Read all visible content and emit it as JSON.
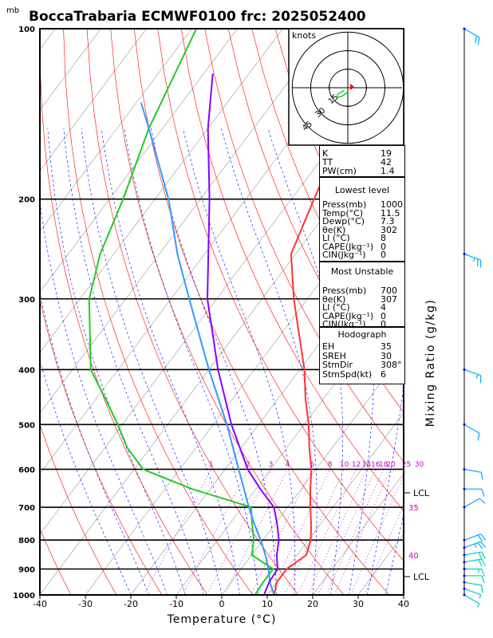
{
  "title": "BoccaTrabaria ECMWF0100 frc: 2025052400",
  "pressure_unit": "mb",
  "xlabel": "Temperature (°C)",
  "right_axis_label": "Mixing Ratio (g/kg)",
  "hodograph": {
    "unit_label": "knots",
    "ring_labels": [
      "15",
      "30",
      "45"
    ],
    "trace_color": "#22cc22",
    "storm_marker_color": "#ff0000"
  },
  "lcl_labels": [
    "LCL",
    "LCL"
  ],
  "mixing_ratio_labels": [
    "1",
    "2",
    "3",
    "4",
    "6",
    "8",
    "10",
    "12",
    "14",
    "16",
    "18",
    "20",
    "25",
    "30"
  ],
  "wetbulb_labels": [
    "35",
    "40"
  ],
  "colors": {
    "dry_adiabat": "#ff0000",
    "moist_adiabat": "#0000ff",
    "mixing_ratio": "#cc00cc",
    "environment_temperature": "#ff3333",
    "dewpoint": "#22cc22",
    "parcel": "#3399ff",
    "wetbulb": "#8800ff",
    "wind_barbs": "#00aaff"
  },
  "indices": {
    "basic": [
      {
        "label": "K",
        "value": "19"
      },
      {
        "label": "TT",
        "value": "42"
      },
      {
        "label": "PW(cm)",
        "value": "1.4"
      }
    ],
    "lowest_level": {
      "header": "Lowest level",
      "rows": [
        {
          "label": "Press(mb)",
          "value": "1000"
        },
        {
          "label": "Temp(°C)",
          "value": "11.5"
        },
        {
          "label": "Dewp(°C)",
          "value": "7.3"
        },
        {
          "label": "θe(K)",
          "value": "302"
        },
        {
          "label": "LI (°C)",
          "value": "8"
        },
        {
          "label": "CAPE(Jkg⁻¹)",
          "value": "0"
        },
        {
          "label": "CIN(Jkg⁻¹)",
          "value": "0"
        }
      ]
    },
    "most_unstable": {
      "header": "Most Unstable",
      "rows": [
        {
          "label": "Press(mb)",
          "value": "700"
        },
        {
          "label": "θe(K)",
          "value": "307"
        },
        {
          "label": "LI (°C)",
          "value": "4"
        },
        {
          "label": "CAPE(Jkg⁻¹)",
          "value": "0"
        },
        {
          "label": "CIN(Jkg⁻¹)",
          "value": "0"
        }
      ]
    },
    "hodograph": {
      "header": "Hodograph",
      "rows": [
        {
          "label": "EH",
          "value": "35"
        },
        {
          "label": "SREH",
          "value": "30"
        },
        {
          "label": "StmDir",
          "value": "308°"
        },
        {
          "label": "StmSpd(kt)",
          "value": "6"
        }
      ]
    }
  },
  "chart_data": {
    "type": "line",
    "title": "BoccaTrabaria ECMWF0100 frc: 2025052400",
    "xlabel": "Temperature (°C)",
    "ylabel": "mb",
    "xlim": [
      -40,
      40
    ],
    "ylim": [
      1000,
      100
    ],
    "y_scale": "log",
    "x_ticks": [
      -40,
      -30,
      -20,
      -10,
      0,
      10,
      20,
      30,
      40
    ],
    "y_ticks": [
      100,
      200,
      300,
      400,
      500,
      600,
      700,
      800,
      900,
      1000
    ],
    "grid": true,
    "series": [
      {
        "name": "Temperature",
        "points": [
          {
            "p": 1000,
            "t": 11.5
          },
          {
            "p": 950,
            "t": 10.0
          },
          {
            "p": 900,
            "t": 10.0
          },
          {
            "p": 850,
            "t": 12.0
          },
          {
            "p": 800,
            "t": 10.5
          },
          {
            "p": 750,
            "t": 8.0
          },
          {
            "p": 700,
            "t": 5.0
          },
          {
            "p": 650,
            "t": 2.0
          },
          {
            "p": 600,
            "t": -1.0
          },
          {
            "p": 550,
            "t": -5.0
          },
          {
            "p": 500,
            "t": -9.0
          },
          {
            "p": 450,
            "t": -14.0
          },
          {
            "p": 400,
            "t": -19.0
          },
          {
            "p": 350,
            "t": -25.5
          },
          {
            "p": 300,
            "t": -33.0
          },
          {
            "p": 250,
            "t": -41.0
          },
          {
            "p": 230,
            "t": -42.5
          },
          {
            "p": 200,
            "t": -45.0
          },
          {
            "p": 150,
            "t": -50.0
          },
          {
            "p": 120,
            "t": -54.0
          },
          {
            "p": 100,
            "t": -58.0
          }
        ]
      },
      {
        "name": "Dewpoint",
        "points": [
          {
            "p": 1000,
            "t": 7.3
          },
          {
            "p": 950,
            "t": 7.0
          },
          {
            "p": 900,
            "t": 7.0
          },
          {
            "p": 850,
            "t": 0.0
          },
          {
            "p": 800,
            "t": -2.0
          },
          {
            "p": 750,
            "t": -5.0
          },
          {
            "p": 700,
            "t": -8.0
          },
          {
            "p": 650,
            "t": -24.0
          },
          {
            "p": 600,
            "t": -38.0
          },
          {
            "p": 550,
            "t": -45.0
          },
          {
            "p": 500,
            "t": -51.0
          },
          {
            "p": 450,
            "t": -58.0
          },
          {
            "p": 400,
            "t": -66.0
          },
          {
            "p": 300,
            "t": -78.0
          },
          {
            "p": 250,
            "t": -83.0
          },
          {
            "p": 200,
            "t": -87.0
          },
          {
            "p": 150,
            "t": -93.0
          },
          {
            "p": 100,
            "t": -99.0
          }
        ]
      },
      {
        "name": "Parcel",
        "points": [
          {
            "p": 1000,
            "t": 11.5
          },
          {
            "p": 950,
            "t": 8.5
          },
          {
            "p": 900,
            "t": 6.0
          },
          {
            "p": 850,
            "t": 3.0
          },
          {
            "p": 800,
            "t": -0.5
          },
          {
            "p": 750,
            "t": -4.5
          },
          {
            "p": 700,
            "t": -8.5
          },
          {
            "p": 600,
            "t": -17.0
          },
          {
            "p": 500,
            "t": -27.0
          },
          {
            "p": 400,
            "t": -40.0
          },
          {
            "p": 300,
            "t": -56.0
          },
          {
            "p": 250,
            "t": -66.0
          },
          {
            "p": 200,
            "t": -77.0
          },
          {
            "p": 150,
            "t": -93.0
          },
          {
            "p": 135,
            "t": -99.0
          }
        ]
      },
      {
        "name": "Wet-bulb",
        "points": [
          {
            "p": 1000,
            "t": 9.3
          },
          {
            "p": 950,
            "t": 8.3
          },
          {
            "p": 900,
            "t": 8.0
          },
          {
            "p": 850,
            "t": 5.5
          },
          {
            "p": 800,
            "t": 3.5
          },
          {
            "p": 750,
            "t": 0.5
          },
          {
            "p": 700,
            "t": -3.0
          },
          {
            "p": 650,
            "t": -9.0
          },
          {
            "p": 600,
            "t": -15.0
          },
          {
            "p": 500,
            "t": -26.0
          },
          {
            "p": 400,
            "t": -38.0
          },
          {
            "p": 300,
            "t": -52.0
          },
          {
            "p": 200,
            "t": -68.0
          },
          {
            "p": 150,
            "t": -80.0
          },
          {
            "p": 120,
            "t": -88.0
          }
        ]
      }
    ],
    "wind_barbs": [
      {
        "p": 1000,
        "dir": 300,
        "spd": 5
      },
      {
        "p": 975,
        "dir": 290,
        "spd": 5
      },
      {
        "p": 950,
        "dir": 280,
        "spd": 10
      },
      {
        "p": 925,
        "dir": 270,
        "spd": 10
      },
      {
        "p": 900,
        "dir": 270,
        "spd": 15
      },
      {
        "p": 875,
        "dir": 260,
        "spd": 20
      },
      {
        "p": 850,
        "dir": 260,
        "spd": 20
      },
      {
        "p": 825,
        "dir": 250,
        "spd": 25
      },
      {
        "p": 800,
        "dir": 250,
        "spd": 20
      },
      {
        "p": 700,
        "dir": 240,
        "spd": 10
      },
      {
        "p": 650,
        "dir": 270,
        "spd": 10
      },
      {
        "p": 600,
        "dir": 280,
        "spd": 10
      },
      {
        "p": 500,
        "dir": 300,
        "spd": 10
      },
      {
        "p": 400,
        "dir": 290,
        "spd": 15
      },
      {
        "p": 250,
        "dir": 290,
        "spd": 25
      },
      {
        "p": 100,
        "dir": 300,
        "spd": 20
      }
    ],
    "hodograph_points": [
      {
        "u": 0.0,
        "v": -3.0
      },
      {
        "u": -2.0,
        "v": -5.0
      },
      {
        "u": -5.0,
        "v": -7.0
      },
      {
        "u": -9.0,
        "v": -8.0
      },
      {
        "u": -8.0,
        "v": -5.0
      },
      {
        "u": -5.0,
        "v": -3.5
      },
      {
        "u": -3.0,
        "v": -2.0
      }
    ],
    "hodograph_ring_speeds_kt": [
      15,
      30,
      45
    ]
  }
}
